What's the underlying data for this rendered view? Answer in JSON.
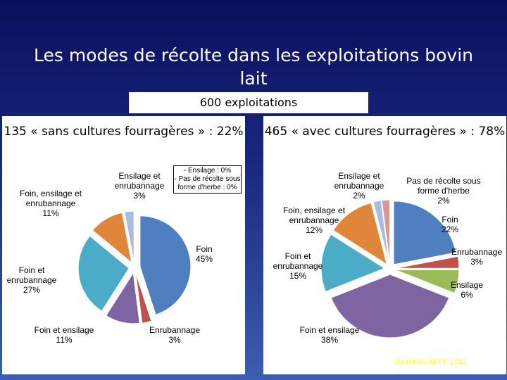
{
  "slide": {
    "title": "Les modes de récolte dans les exploitations bovin lait",
    "subtitle": "600 exploitations",
    "footer": "Journées AFPF 2011"
  },
  "chart_data": [
    {
      "type": "pie",
      "title": "135 « sans cultures fourragères » : 22%",
      "note": [
        "- Ensilage : 0%",
        "- Pas de récolte sous forme d'herbe : 0%"
      ],
      "slices": [
        {
          "name": "Foin",
          "value": 45,
          "label": "45%",
          "color": "#4f7fbf"
        },
        {
          "name": "Enrubannage",
          "value": 3,
          "label": "3%",
          "color": "#c0504d"
        },
        {
          "name": "Foin et ensilage",
          "value": 11,
          "label": "11%",
          "color": "#7e64a0"
        },
        {
          "name": "Foin et enrubannage",
          "value": 27,
          "label": "27%",
          "color": "#4aacc6"
        },
        {
          "name": "Foin, ensilage et enrubannage",
          "value": 11,
          "label": "11%",
          "color": "#e0863a"
        },
        {
          "name": "Ensilage et enrubannage",
          "value": 3,
          "label": "3%",
          "color": "#a6bde0"
        }
      ]
    },
    {
      "type": "pie",
      "title": "465 « avec cultures fourragères » : 78%",
      "slices": [
        {
          "name": "Foin",
          "value": 22,
          "label": "22%",
          "color": "#4f7fbf"
        },
        {
          "name": "Enrubannage",
          "value": 3,
          "label": "3%",
          "color": "#c0504d"
        },
        {
          "name": "Ensilage",
          "value": 6,
          "label": "6%",
          "color": "#9bbb59"
        },
        {
          "name": "Foin et ensilage",
          "value": 38,
          "label": "38%",
          "color": "#7e64a0"
        },
        {
          "name": "Foin et enrubannage",
          "value": 15,
          "label": "15%",
          "color": "#4aacc6"
        },
        {
          "name": "Foin, ensilage et enrubannage",
          "value": 12,
          "label": "12%",
          "color": "#e0863a"
        },
        {
          "name": "Ensilage et enrubannage",
          "value": 2,
          "label": "2%",
          "color": "#a6bde0"
        },
        {
          "name": "Pas de récolte sous forme d'herbe",
          "value": 2,
          "label": "2%",
          "color": "#d99694"
        }
      ]
    }
  ]
}
